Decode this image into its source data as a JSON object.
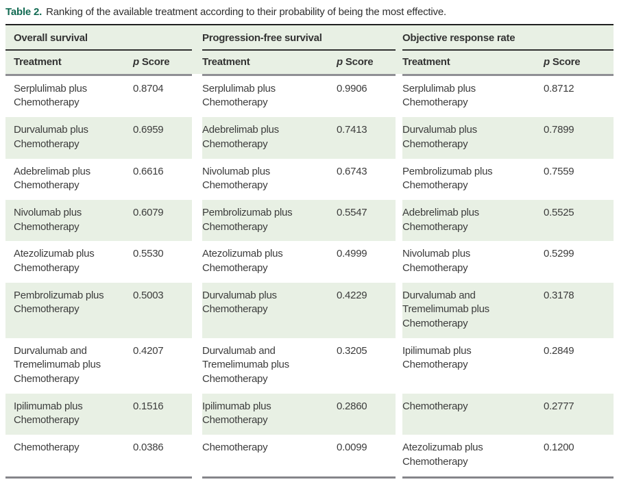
{
  "caption": {
    "label": "Table 2.",
    "text": "Ranking of the available treatment according to their probability of being the most effective."
  },
  "colors": {
    "accent_green_title": "#116a52",
    "stripe_green": "#e8f0e4",
    "text": "#3c3c3c",
    "top_rule": "#1f1f1f",
    "gray_rule": "#8f8f94"
  },
  "table": {
    "groups": [
      {
        "title": "Overall survival"
      },
      {
        "title": "Progression-free survival"
      },
      {
        "title": "Objective response rate"
      }
    ],
    "col_headers": {
      "treatment": "Treatment",
      "p": "p",
      "score": "Score"
    },
    "rows": [
      {
        "os": {
          "treatment": "Serplulimab plus Chemotherapy",
          "p_score": "0.8704"
        },
        "pfs": {
          "treatment": "Serplulimab plus Chemotherapy",
          "p_score": "0.9906"
        },
        "orr": {
          "treatment": "Serplulimab plus Chemotherapy",
          "p_score": "0.8712"
        }
      },
      {
        "os": {
          "treatment": "Durvalumab plus Chemotherapy",
          "p_score": "0.6959"
        },
        "pfs": {
          "treatment": "Adebrelimab plus Chemotherapy",
          "p_score": "0.7413"
        },
        "orr": {
          "treatment": "Durvalumab plus Chemotherapy",
          "p_score": "0.7899"
        }
      },
      {
        "os": {
          "treatment": "Adebrelimab plus Chemotherapy",
          "p_score": "0.6616"
        },
        "pfs": {
          "treatment": "Nivolumab plus Chemotherapy",
          "p_score": "0.6743"
        },
        "orr": {
          "treatment": "Pembrolizumab plus Chemotherapy",
          "p_score": "0.7559"
        }
      },
      {
        "os": {
          "treatment": "Nivolumab plus Chemotherapy",
          "p_score": "0.6079"
        },
        "pfs": {
          "treatment": "Pembrolizumab plus Chemotherapy",
          "p_score": "0.5547"
        },
        "orr": {
          "treatment": "Adebrelimab plus Chemotherapy",
          "p_score": "0.5525"
        }
      },
      {
        "os": {
          "treatment": "Atezolizumab plus Chemotherapy",
          "p_score": "0.5530"
        },
        "pfs": {
          "treatment": "Atezolizumab plus Chemotherapy",
          "p_score": "0.4999"
        },
        "orr": {
          "treatment": "Nivolumab plus Chemotherapy",
          "p_score": "0.5299"
        }
      },
      {
        "os": {
          "treatment": "Pembrolizumab plus Chemotherapy",
          "p_score": "0.5003"
        },
        "pfs": {
          "treatment": "Durvalumab plus Chemotherapy",
          "p_score": "0.4229"
        },
        "orr": {
          "treatment": "Durvalumab and Tremelimumab plus Chemotherapy",
          "p_score": "0.3178"
        }
      },
      {
        "os": {
          "treatment": "Durvalumab and Tremelimumab plus Chemotherapy",
          "p_score": "0.4207"
        },
        "pfs": {
          "treatment": "Durvalumab and Tremelimumab plus Chemotherapy",
          "p_score": "0.3205"
        },
        "orr": {
          "treatment": "Ipilimumab plus Chemotherapy",
          "p_score": "0.2849"
        }
      },
      {
        "os": {
          "treatment": "Ipilimumab plus Chemotherapy",
          "p_score": "0.1516"
        },
        "pfs": {
          "treatment": "Ipilimumab plus Chemotherapy",
          "p_score": "0.2860"
        },
        "orr": {
          "treatment": "Chemotherapy",
          "p_score": "0.2777"
        }
      },
      {
        "os": {
          "treatment": "Chemotherapy",
          "p_score": "0.0386"
        },
        "pfs": {
          "treatment": "Chemotherapy",
          "p_score": "0.0099"
        },
        "orr": {
          "treatment": "Atezolizumab plus Chemotherapy",
          "p_score": "0.1200"
        }
      }
    ]
  }
}
